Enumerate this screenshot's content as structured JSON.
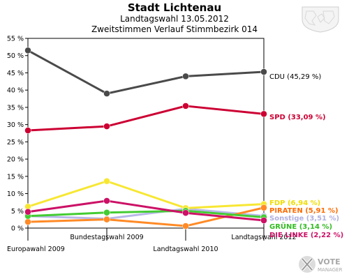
{
  "chart_data": {
    "type": "line",
    "title": "Stadt Lichtenau",
    "subtitle_lines": [
      "Landtagswahl 13.05.2012",
      "Zweitstimmen Verlauf Stimmbezirk 014"
    ],
    "categories": [
      "Europawahl 2009",
      "Bundestagswahl 2009",
      "Landtagswahl 2010",
      "Landtagswahl 2012"
    ],
    "ylim": [
      0,
      55
    ],
    "yticks": [
      0,
      5,
      10,
      15,
      20,
      25,
      30,
      35,
      40,
      45,
      50,
      55
    ],
    "ytick_suffix": " %",
    "grid": false,
    "series": [
      {
        "name": "CDU",
        "end_label": "CDU (45,29 %)",
        "color": "#4a4a4a",
        "label_color": "#000000",
        "values": [
          51.5,
          39.0,
          44.0,
          45.29
        ]
      },
      {
        "name": "SPD",
        "end_label": "SPD (33,09 %)",
        "color": "#cc0033",
        "label_color": "#cc0033",
        "values": [
          28.3,
          29.5,
          35.4,
          33.09
        ]
      },
      {
        "name": "FDP",
        "end_label": "FDP (6,94 %)",
        "color": "#f7e733",
        "label_color": "#f0dd00",
        "values": [
          6.2,
          13.6,
          5.8,
          6.94
        ]
      },
      {
        "name": "PIRATEN",
        "end_label": "PIRATEN (5,91 %)",
        "color": "#ff8a26",
        "label_color": "#ff6a00",
        "values": [
          1.8,
          2.5,
          0.6,
          5.91
        ]
      },
      {
        "name": "Sonstige",
        "end_label": "Sonstige (3,51 %)",
        "color": "#b8b8e8",
        "label_color": "#b0b0e0",
        "values": [
          3.5,
          2.7,
          5.6,
          3.51
        ]
      },
      {
        "name": "GRÜNE",
        "end_label": "GRÜNE (3,14 %)",
        "color": "#44cc33",
        "label_color": "#33bb22",
        "values": [
          3.5,
          4.5,
          5.0,
          3.14
        ]
      },
      {
        "name": "DIE LINKE",
        "end_label": "DIE LINKE (2,22 %)",
        "color": "#cc1166",
        "label_color": "#cc1166",
        "values": [
          4.7,
          7.9,
          4.4,
          2.22
        ]
      }
    ]
  },
  "logo": {
    "line1": "VOTE",
    "line2": "MANAGER"
  }
}
